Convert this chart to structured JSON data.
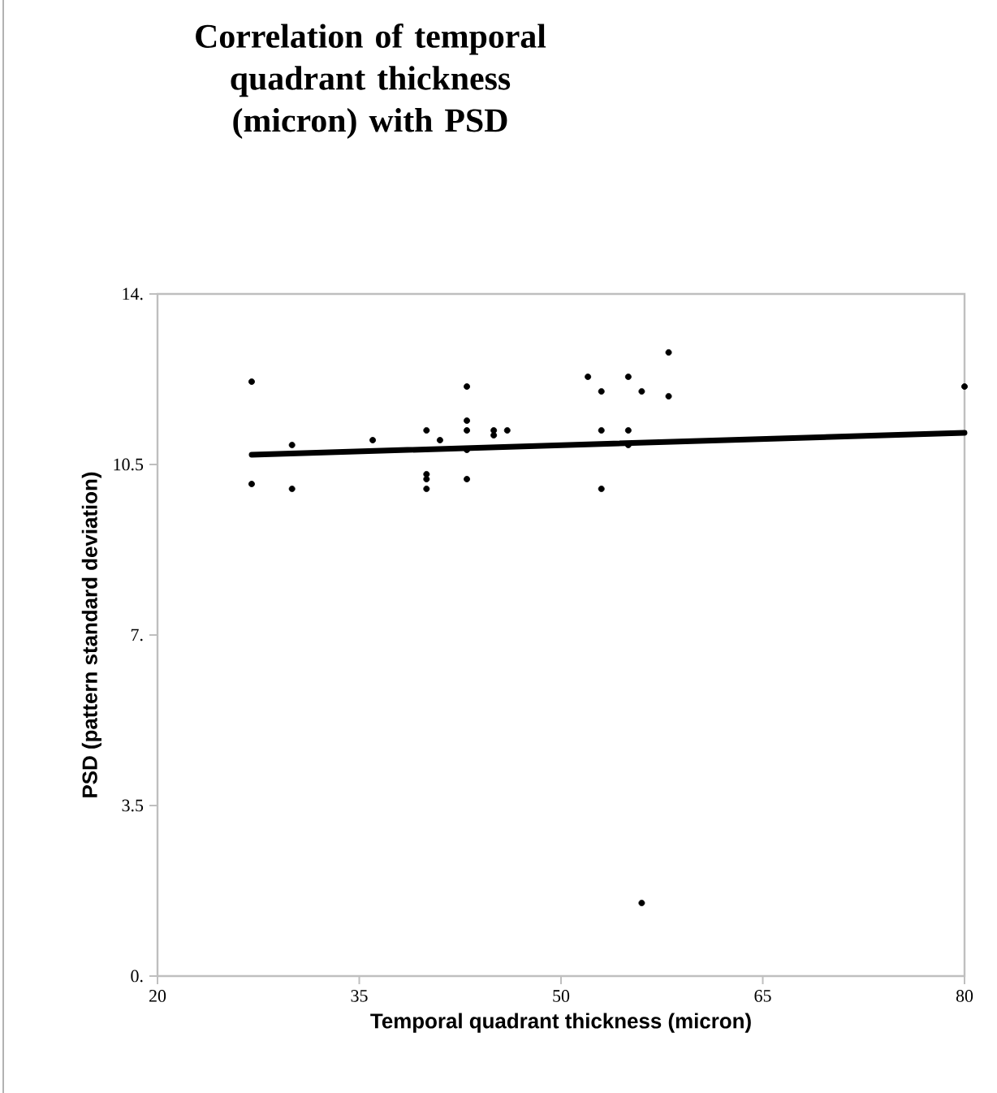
{
  "chart_data": {
    "type": "scatter",
    "title": "Correlation of temporal quadrant thickness (micron) with PSD",
    "xlabel": "Temporal quadrant thickness (micron)",
    "ylabel": "PSD (pattern standard deviation)",
    "xlim": [
      20,
      80
    ],
    "xticks": [
      20,
      35,
      50,
      65,
      80
    ],
    "ylim": [
      0,
      14
    ],
    "yticks": [
      {
        "value": 0,
        "label": "0."
      },
      {
        "value": 3.5,
        "label": "3.5"
      },
      {
        "value": 7,
        "label": "7."
      },
      {
        "value": 10.5,
        "label": "10.5"
      },
      {
        "value": 14,
        "label": "14."
      }
    ],
    "grid": false,
    "series": [
      {
        "marker": "circle",
        "color": "#000000",
        "x": [
          27,
          27,
          30,
          30,
          36,
          40,
          40,
          40,
          40,
          41,
          43,
          43,
          43,
          43,
          43,
          45,
          45,
          46,
          52,
          53,
          53,
          53,
          55,
          55,
          55,
          56,
          56,
          58,
          58,
          80
        ],
        "values": [
          12.2,
          10.1,
          10.9,
          10.0,
          11.0,
          11.2,
          10.3,
          10.2,
          10.0,
          11.0,
          12.1,
          11.4,
          11.2,
          10.8,
          10.2,
          11.2,
          11.1,
          11.2,
          12.3,
          12.0,
          11.2,
          10.0,
          12.3,
          11.2,
          10.9,
          12.0,
          1.5,
          12.8,
          11.9,
          12.1
        ]
      },
      {
        "type": "line",
        "marker": "none",
        "color": "#000000",
        "x": [
          27,
          80
        ],
        "values": [
          10.7,
          11.15
        ]
      }
    ]
  }
}
